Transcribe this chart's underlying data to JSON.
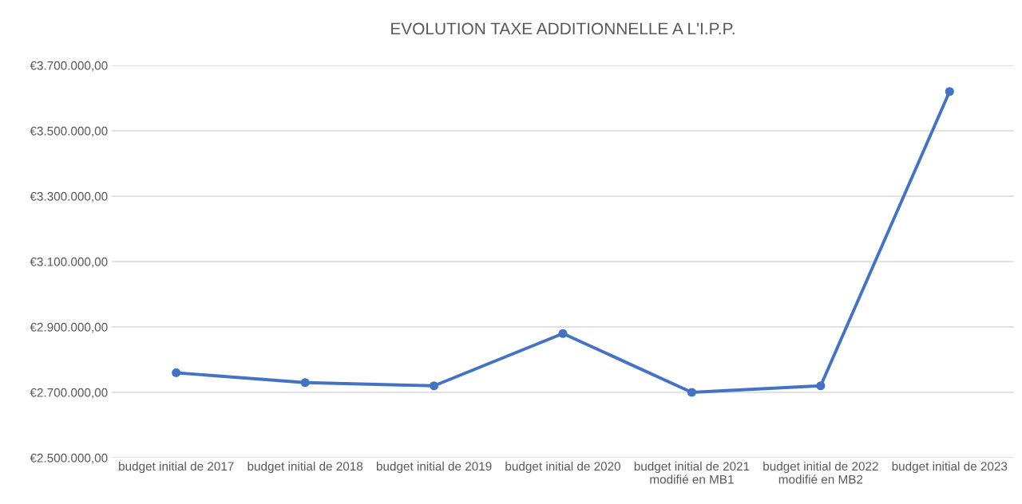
{
  "chart_data": {
    "type": "line",
    "title": "EVOLUTION TAXE ADDITIONNELLE A L'I.P.P.",
    "categories": [
      "budget initial de 2017",
      "budget initial de 2018",
      "budget initial de 2019",
      "budget initial de 2020",
      "budget initial de 2021\nmodifié en MB1",
      "budget initial de 2022\nmodifié en MB2",
      "budget initial de 2023"
    ],
    "series": [
      {
        "color": "#4472c4",
        "values": [
          2760000,
          2730000,
          2720000,
          2880000,
          2700000,
          2720000,
          3620000
        ]
      }
    ],
    "ylim": [
      2500000,
      3700000
    ],
    "yticks": [
      {
        "value": 2500000,
        "label": "€2.500.000,00"
      },
      {
        "value": 2700000,
        "label": "€2.700.000,00"
      },
      {
        "value": 2900000,
        "label": "€2.900.000,00"
      },
      {
        "value": 3100000,
        "label": "€3.100.000,00"
      },
      {
        "value": 3300000,
        "label": "€3.300.000,00"
      },
      {
        "value": 3500000,
        "label": "€3.500.000,00"
      },
      {
        "value": 3700000,
        "label": "€3.700.000,00"
      }
    ],
    "grid": "y",
    "marker": "circle",
    "line_style": "solid"
  }
}
